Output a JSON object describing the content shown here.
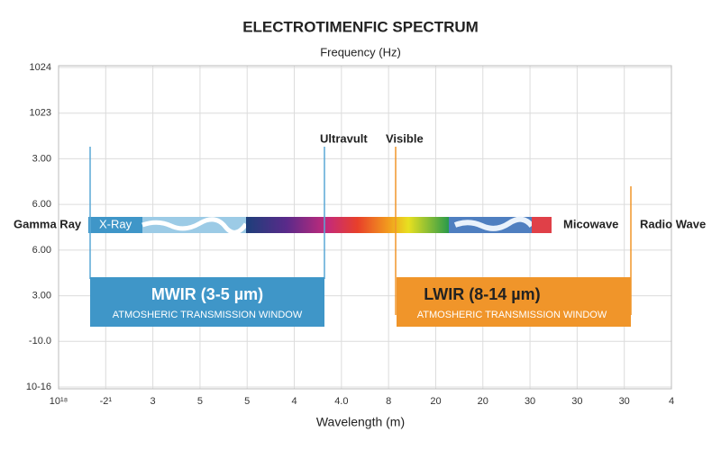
{
  "title": "ELECTROTIMENFIC SPECTRUM",
  "top_axis_label": "Frequency (Hz)",
  "bottom_axis_label": "Wavelength (m)",
  "y_tick_labels": [
    "1024",
    "1023",
    "3.00",
    "6.00",
    "6.00",
    "3.00",
    "-10.0",
    "10-16"
  ],
  "x_tick_labels": [
    "10¹⁸",
    "-2¹",
    "3",
    "5",
    "5",
    "4",
    "4.0",
    "8",
    "20",
    "20",
    "30",
    "30",
    "30",
    "4"
  ],
  "bands": [
    {
      "label": "Gamma Ray"
    },
    {
      "label": "X-Ray"
    },
    {
      "label": "Ultravult"
    },
    {
      "label": "Visible"
    },
    {
      "label": "Micowave"
    },
    {
      "label": "Radio Wave"
    }
  ],
  "windows": [
    {
      "title": "MWIR (3-5 µm)",
      "subtitle": "ATMOSHERIC TRANSMISSION WINDOW"
    },
    {
      "title": "LWIR (8-14 µm)",
      "subtitle": "ATMOSHERIC TRANSMISSION WINDOW"
    }
  ]
}
